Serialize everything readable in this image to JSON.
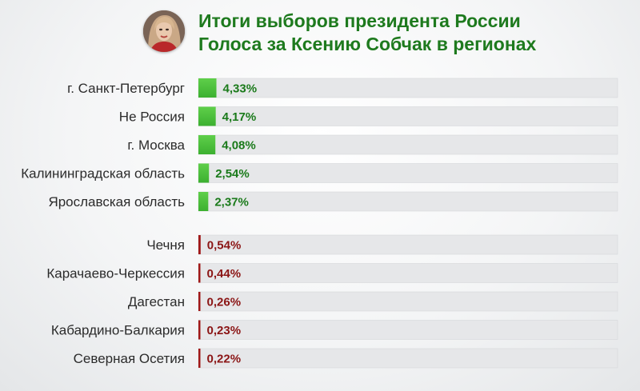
{
  "header": {
    "title_line1": "Итоги выборов президента России",
    "title_line2": "Голоса за Ксению Собчак в регионах"
  },
  "colors": {
    "title": "#1e7a1e",
    "top_bar": "#3cb030",
    "top_value": "#1a7a1a",
    "bottom_bar": "#a01818",
    "bottom_value": "#8b1515",
    "track": "#e6e7e9"
  },
  "chart_data": [
    {
      "type": "bar",
      "orientation": "horizontal",
      "title": "Итоги выборов президента России",
      "subtitle": "Голоса за Ксению Собчак в регионах",
      "categories": [
        "г. Санкт-Петербург",
        "Не Россия",
        "г. Москва",
        "Калининградская область",
        "Ярославская область"
      ],
      "values": [
        4.33,
        4.17,
        4.08,
        2.54,
        2.37
      ],
      "value_labels": [
        "4,33%",
        "4,17%",
        "4,08%",
        "2,54%",
        "2,37%"
      ],
      "unit": "%",
      "xlim": [
        0,
        100
      ],
      "color": "#3cb030"
    },
    {
      "type": "bar",
      "orientation": "horizontal",
      "categories": [
        "Чечня",
        "Карачаево-Черкессия",
        "Дагестан",
        "Кабардино-Балкария",
        "Северная Осетия"
      ],
      "values": [
        0.54,
        0.44,
        0.26,
        0.23,
        0.22
      ],
      "value_labels": [
        "0,54%",
        "0,44%",
        "0,26%",
        "0,23%",
        "0,22%"
      ],
      "unit": "%",
      "xlim": [
        0,
        100
      ],
      "color": "#a01818"
    }
  ]
}
